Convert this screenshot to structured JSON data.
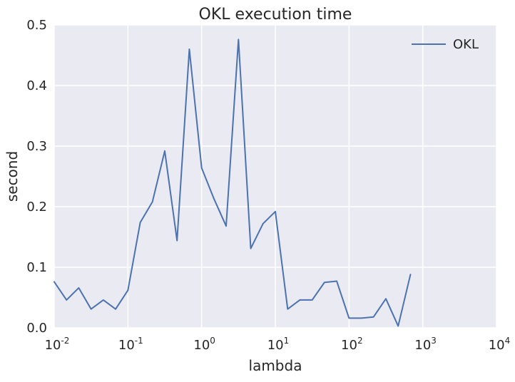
{
  "chart_data": {
    "type": "line",
    "title": "OKL execution time",
    "xlabel": "lambda",
    "ylabel": "second",
    "xscale": "log",
    "xlim": [
      0.01,
      10000
    ],
    "ylim": [
      0,
      0.5
    ],
    "xticks": [
      {
        "base": "10",
        "exp": "-2"
      },
      {
        "base": "10",
        "exp": "-1"
      },
      {
        "base": "10",
        "exp": "0"
      },
      {
        "base": "10",
        "exp": "1"
      },
      {
        "base": "10",
        "exp": "2"
      },
      {
        "base": "10",
        "exp": "3"
      },
      {
        "base": "10",
        "exp": "4"
      }
    ],
    "yticks": [
      "0.0",
      "0.1",
      "0.2",
      "0.3",
      "0.4",
      "0.5"
    ],
    "grid": true,
    "legend_position": "top-right",
    "colors": {
      "plot_background": "#EAEAF2",
      "grid": "#FFFFFF",
      "series": "#4C72B0",
      "text": "#262626"
    },
    "series": [
      {
        "name": "OKL",
        "x": [
          0.01,
          0.0147,
          0.0215,
          0.0316,
          0.0464,
          0.0681,
          0.1,
          0.147,
          0.215,
          0.316,
          0.464,
          0.681,
          1.0,
          1.47,
          2.15,
          3.16,
          4.64,
          6.81,
          10.0,
          14.7,
          21.5,
          31.6,
          46.4,
          68.1,
          100.0,
          147.0,
          215.0,
          316.0,
          464.0,
          681.0,
          1000.0
        ],
        "y": [
          0.076,
          0.046,
          0.066,
          0.031,
          0.046,
          0.031,
          0.062,
          0.174,
          0.208,
          0.292,
          0.144,
          0.46,
          0.264,
          0.213,
          0.168,
          0.476,
          0.131,
          0.172,
          0.192,
          0.031,
          0.046,
          0.046,
          0.075,
          0.077,
          0.016,
          0.016,
          0.018,
          0.048,
          0.003,
          0.088,
          null
        ]
      }
    ]
  }
}
